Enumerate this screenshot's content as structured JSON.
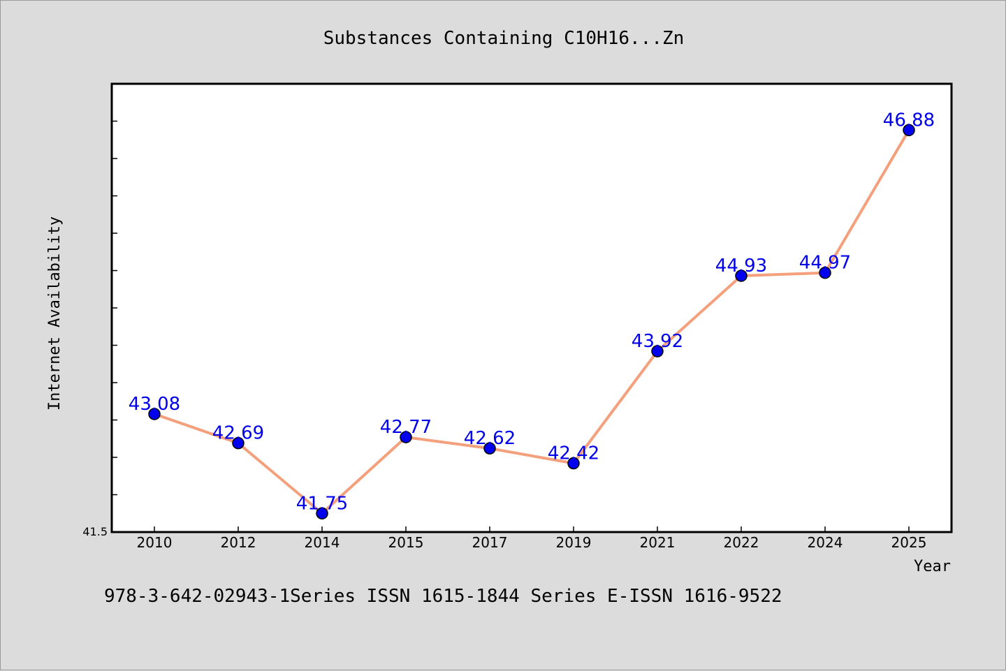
{
  "chart_data": {
    "type": "line",
    "title": "Substances Containing C10H16...Zn",
    "xlabel": "Year",
    "ylabel": "Internet Availability",
    "categories": [
      "2010",
      "2012",
      "2014",
      "2015",
      "2017",
      "2019",
      "2021",
      "2022",
      "2024",
      "2025"
    ],
    "series": [
      {
        "values": [
          43.08,
          42.69,
          41.75,
          42.77,
          42.62,
          42.42,
          43.92,
          44.93,
          44.97,
          46.88
        ],
        "labels": [
          "43.08",
          "42.69",
          "41.75",
          "42.77",
          "42.62",
          "42.42",
          "43.92",
          "44.93",
          "44.97",
          "46.88"
        ]
      }
    ],
    "ylim": [
      41.5,
      47.5
    ],
    "yticks_labeled": [
      "41.5"
    ],
    "grid": false,
    "legend": "none",
    "colors": {
      "line": "#f4a07c",
      "marker": "#0000ee",
      "data_label": "#0000ee",
      "background": "#dcdcdc",
      "plot_background": "#ffffff"
    }
  },
  "footnote": "978-3-642-02943-1Series ISSN 1615-1844 Series E-ISSN 1616-9522"
}
